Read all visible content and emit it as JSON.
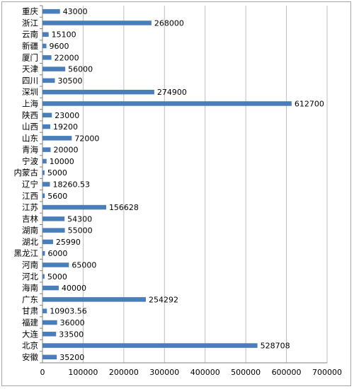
{
  "chart_data": {
    "type": "bar",
    "orientation": "horizontal",
    "categories": [
      "重庆",
      "浙江",
      "云南",
      "新疆",
      "厦门",
      "天津",
      "四川",
      "深圳",
      "上海",
      "陕西",
      "山西",
      "山东",
      "青海",
      "宁波",
      "内蒙古",
      "辽宁",
      "江西",
      "江苏",
      "吉林",
      "湖南",
      "湖北",
      "黑龙江",
      "河南",
      "河北",
      "海南",
      "广东",
      "甘肃",
      "福建",
      "大连",
      "北京",
      "安徽"
    ],
    "values": [
      43000,
      268000,
      15100,
      9600,
      22000,
      56000,
      30500,
      274900,
      612700,
      23000,
      19200,
      72000,
      20000,
      10000,
      5000,
      18260.53,
      5600,
      156628,
      54300,
      55000,
      25990,
      6000,
      65000,
      5000,
      40000,
      254292,
      10903.56,
      36000,
      33500,
      528708,
      35200
    ],
    "data_labels": [
      "43000",
      "268000",
      "15100",
      "9600",
      "22000",
      "56000",
      "30500",
      "274900",
      "612700",
      "23000",
      "19200",
      "72000",
      "20000",
      "10000",
      "5000",
      "18260.53",
      "5600",
      "156628",
      "54300",
      "55000",
      "25990",
      "6000",
      "65000",
      "5000",
      "40000",
      "254292",
      "10903.56",
      "36000",
      "33500",
      "528708",
      "35200"
    ],
    "xlim": [
      0,
      700000
    ],
    "x_ticks": [
      "0",
      "100000",
      "200000",
      "300000",
      "400000",
      "500000",
      "600000",
      "700000"
    ],
    "grid": true,
    "legend": "none",
    "title": "",
    "xlabel": "",
    "ylabel": "",
    "bar_color": "#4a7ebb",
    "grid_color": "#bfbfbf"
  }
}
